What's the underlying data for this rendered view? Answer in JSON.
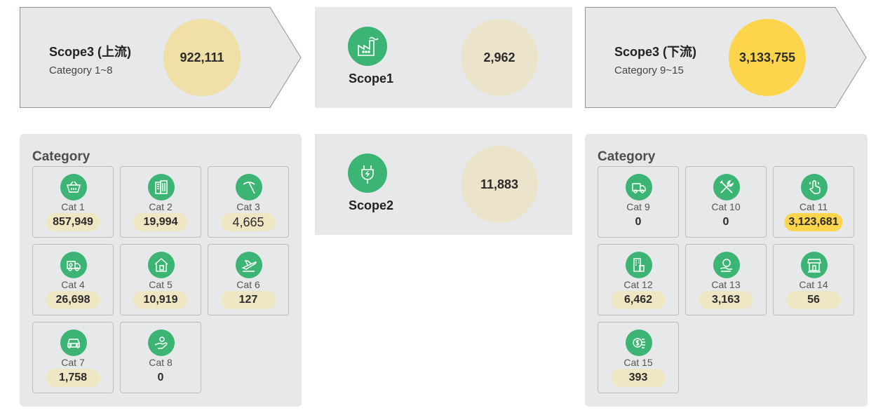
{
  "colors": {
    "panel": "#e6e8e9",
    "green": "#3cb474",
    "upstream_circle": "#f0dfa6",
    "scope_circle": "#ece4ca",
    "downstream_circle": "#fdd54c",
    "value_pill": "#efe6c4",
    "highlight_pill": "#fdd54c"
  },
  "upstream": {
    "title": "Scope3 (上流)",
    "subtitle": "Category 1~8",
    "total": "922,111"
  },
  "scope1": {
    "label": "Scope1",
    "total": "2,962",
    "icon": "factory-icon"
  },
  "downstream": {
    "title": "Scope3 (下流)",
    "subtitle": "Category 9~15",
    "total": "3,133,755"
  },
  "scope2": {
    "label": "Scope2",
    "total": "11,883",
    "icon": "plug-icon"
  },
  "left_categories": {
    "heading": "Category",
    "items": [
      {
        "name": "Cat 1",
        "value": "857,949",
        "icon": "cart-icon",
        "pill": true
      },
      {
        "name": "Cat 2",
        "value": "19,994",
        "icon": "building-icon",
        "pill": true
      },
      {
        "name": "Cat 3",
        "value": "4,665",
        "icon": "pickaxe-icon",
        "pill": true
      },
      {
        "name": "Cat 4",
        "value": "26,698",
        "icon": "truck-gear-icon",
        "pill": true
      },
      {
        "name": "Cat 5",
        "value": "10,919",
        "icon": "house-trash-icon",
        "pill": true
      },
      {
        "name": "Cat 6",
        "value": "127",
        "icon": "airplane-icon",
        "pill": true
      },
      {
        "name": "Cat 7",
        "value": "1,758",
        "icon": "car-icon",
        "pill": true
      },
      {
        "name": "Cat 8",
        "value": "0",
        "icon": "hand-coin-icon",
        "pill": false
      }
    ]
  },
  "right_categories": {
    "heading": "Category",
    "items": [
      {
        "name": "Cat 9",
        "value": "0",
        "icon": "delivery-truck-icon",
        "pill": false
      },
      {
        "name": "Cat 10",
        "value": "0",
        "icon": "tools-icon",
        "pill": false
      },
      {
        "name": "Cat 11",
        "value": "3,123,681",
        "icon": "hand-touch-icon",
        "pill": true,
        "highlight": true
      },
      {
        "name": "Cat 12",
        "value": "6,462",
        "icon": "building-trash-icon",
        "pill": true
      },
      {
        "name": "Cat 13",
        "value": "3,163",
        "icon": "person-hand-icon",
        "pill": true
      },
      {
        "name": "Cat 14",
        "value": "56",
        "icon": "store-icon",
        "pill": true
      },
      {
        "name": "Cat 15",
        "value": "393",
        "icon": "coins-icon",
        "pill": true
      }
    ]
  }
}
